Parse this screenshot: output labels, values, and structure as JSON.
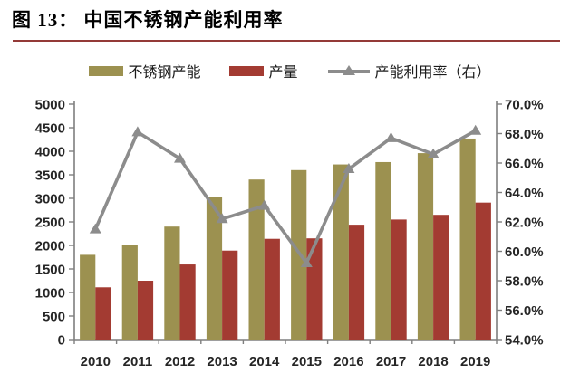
{
  "page": {
    "title": "图 13： 中国不锈钢产能利用率"
  },
  "colors": {
    "capacity_bar": "#9C9150",
    "production_bar": "#A33B32",
    "utilization_line": "#8C8C8C",
    "title_rule": "#943A38",
    "axis": "#7F7F7F",
    "tick_text": "#262626"
  },
  "chart_data": {
    "type": "bar",
    "subtype": "combo-bar-line-dual-axis",
    "title": "中国不锈钢产能利用率",
    "categories": [
      "2010",
      "2011",
      "2012",
      "2013",
      "2014",
      "2015",
      "2016",
      "2017",
      "2018",
      "2019"
    ],
    "series": [
      {
        "name": "不锈钢产能",
        "type": "bar",
        "axis": "left",
        "color": "#9C9150",
        "values": [
          1800,
          2010,
          2400,
          3020,
          3400,
          3600,
          3720,
          3770,
          3960,
          4270
        ]
      },
      {
        "name": "产量",
        "type": "bar",
        "axis": "left",
        "color": "#A33B32",
        "values": [
          1110,
          1250,
          1595,
          1890,
          2140,
          2150,
          2440,
          2550,
          2650,
          2910
        ]
      },
      {
        "name": "产能利用率（右）",
        "type": "line",
        "axis": "right",
        "color": "#8C8C8C",
        "marker": "triangle",
        "values": [
          61.5,
          68.1,
          66.3,
          62.2,
          63.1,
          59.2,
          65.6,
          67.7,
          66.6,
          68.2
        ]
      }
    ],
    "left_axis": {
      "min": 0,
      "max": 5000,
      "step": 500,
      "tick_labels": [
        "5000",
        "4500",
        "4000",
        "3500",
        "3000",
        "2500",
        "2000",
        "1500",
        "1000",
        "500",
        "0"
      ]
    },
    "right_axis": {
      "min": 54,
      "max": 70,
      "step": 2,
      "unit": "%",
      "tick_labels": [
        "70.0%",
        "68.0%",
        "66.0%",
        "64.0%",
        "62.0%",
        "60.0%",
        "58.0%",
        "56.0%",
        "54.0%"
      ]
    },
    "grid": false,
    "legend_position": "top-center"
  }
}
